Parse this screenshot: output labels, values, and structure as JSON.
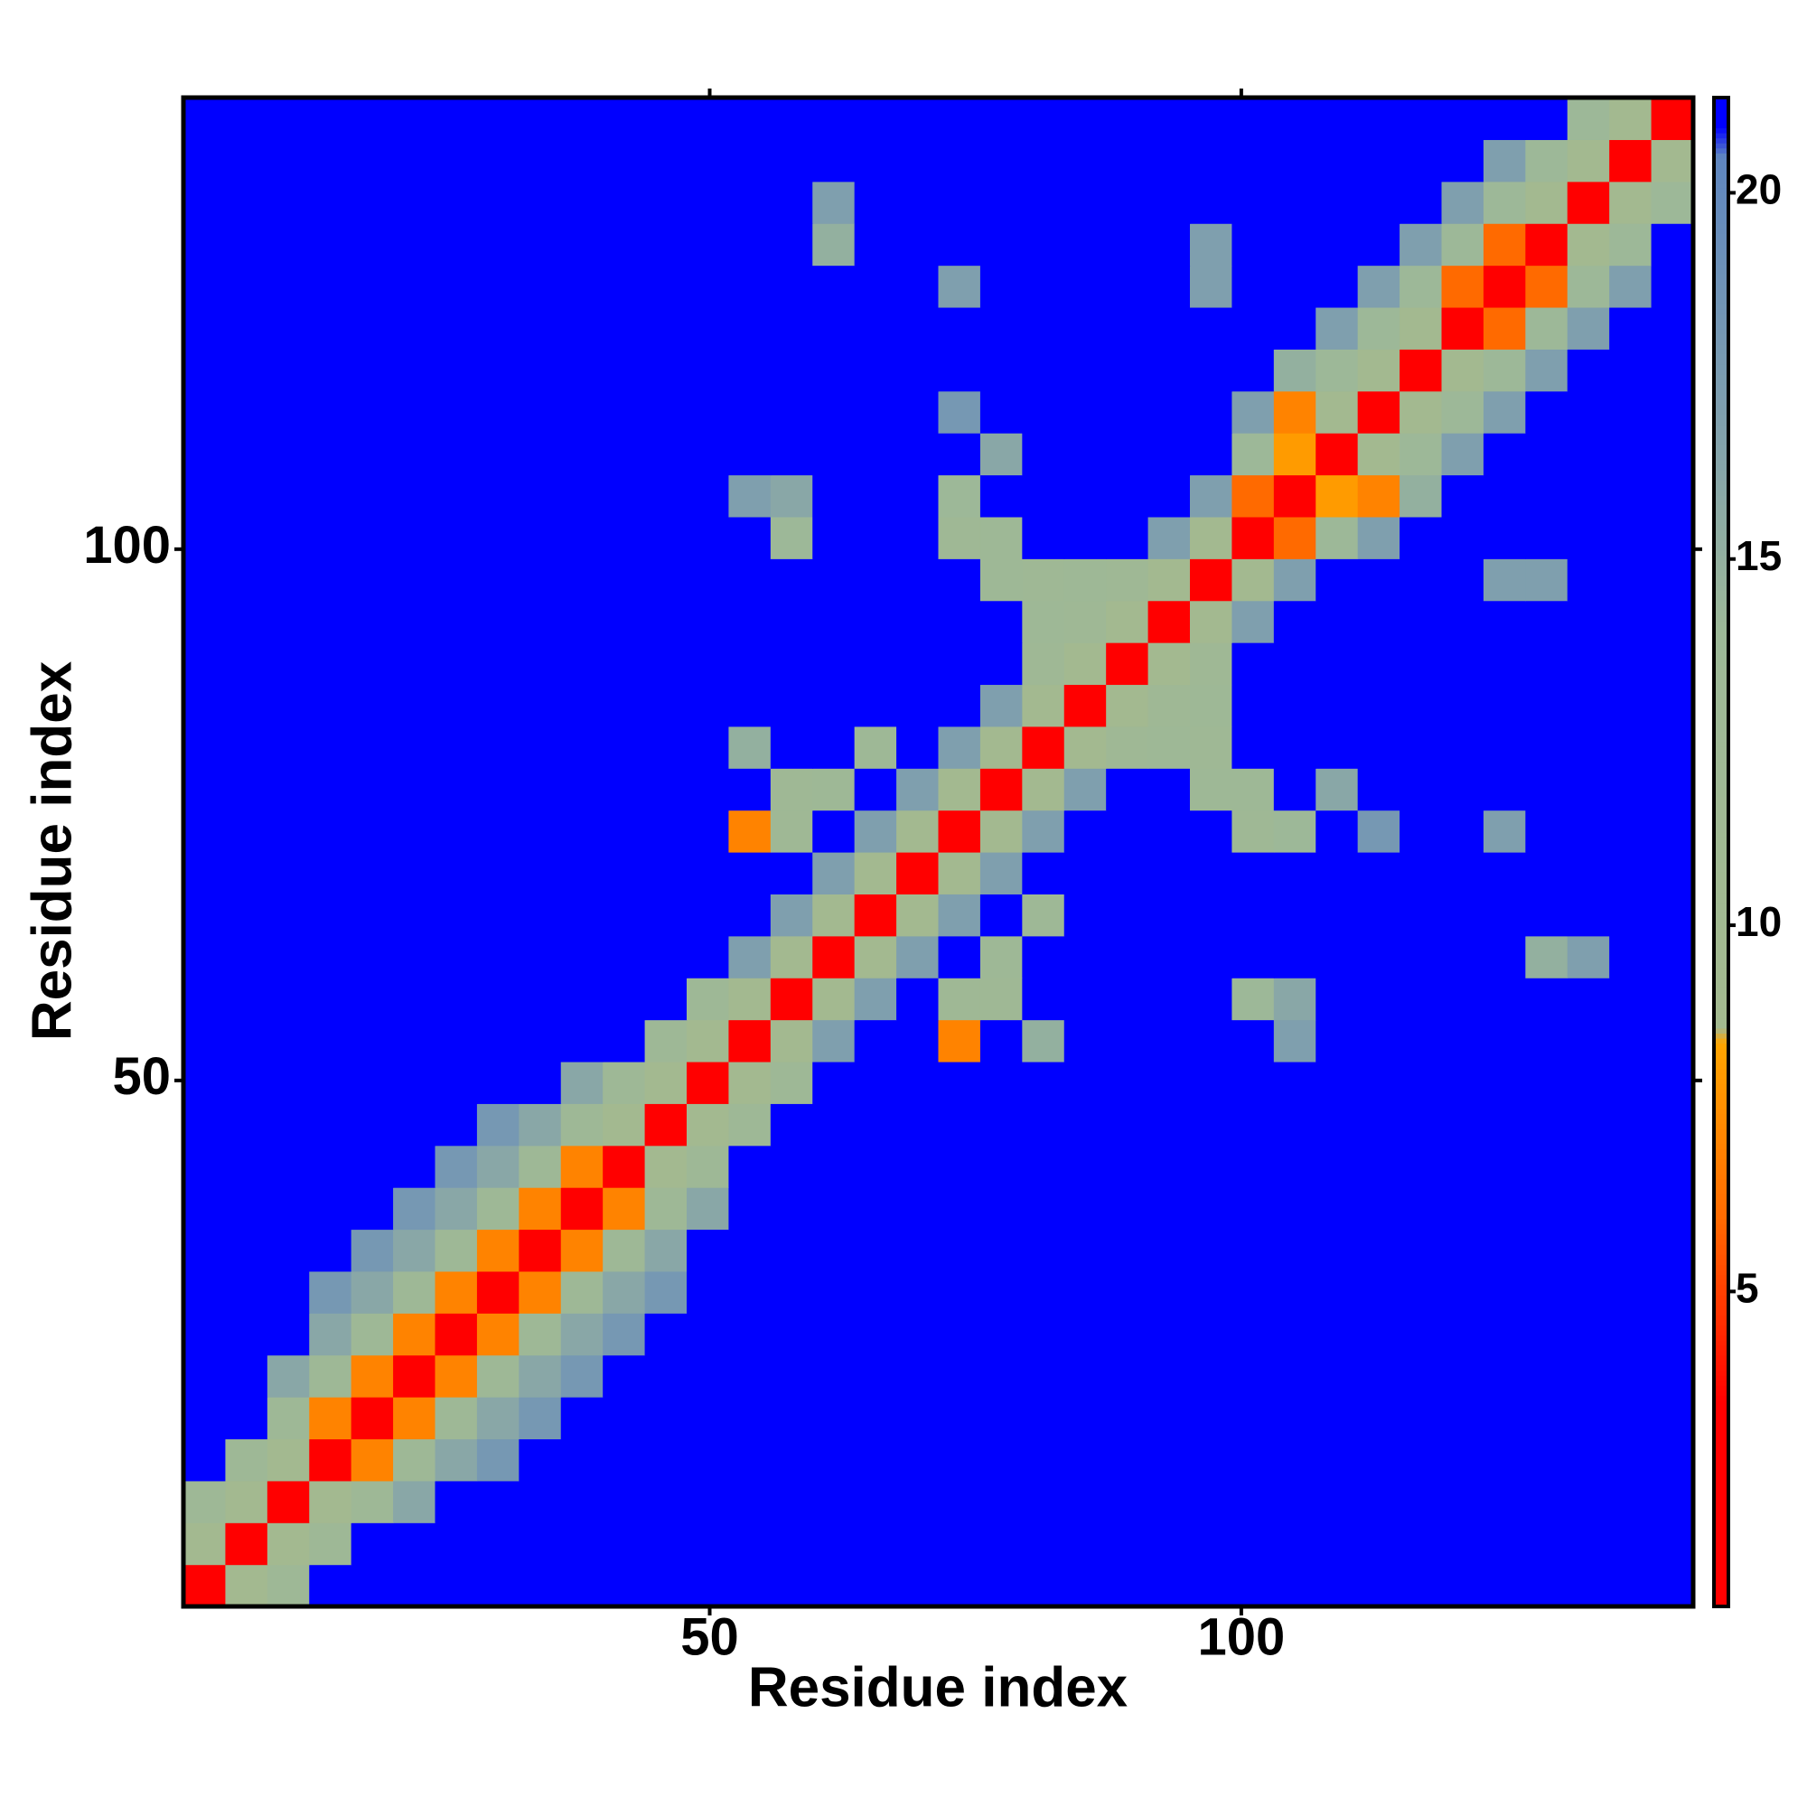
{
  "chart_data": {
    "type": "heatmap",
    "x_label": "Residue index",
    "y_label": "Residue index",
    "xlim": [
      0.5,
      142.5
    ],
    "ylim": [
      0.5,
      142.5
    ],
    "xticks": [
      50,
      100
    ],
    "yticks": [
      50,
      100
    ],
    "clim": [
      0.7,
      21.3
    ],
    "cticks": [
      5,
      10,
      15,
      20
    ],
    "colorscale": [
      [
        0.7,
        "#ff0000"
      ],
      [
        3.5,
        "#ff0000"
      ],
      [
        6,
        "#ff6a00"
      ],
      [
        8.4,
        "#ffa500"
      ],
      [
        8.6,
        "#a3b98f"
      ],
      [
        14,
        "#9db898"
      ],
      [
        17,
        "#7f9fae"
      ],
      [
        20.5,
        "#5f86bf"
      ],
      [
        20.9,
        "#0000ff"
      ],
      [
        21.3,
        "#0000ff"
      ]
    ],
    "z": [
      [
        3,
        9,
        13,
        21,
        21,
        21,
        21,
        21,
        21,
        21,
        21,
        21,
        21,
        21,
        21,
        21,
        21,
        21,
        21,
        21,
        21,
        21,
        21,
        21,
        21,
        21,
        21,
        21,
        21,
        21,
        21,
        21,
        21,
        21,
        21,
        21
      ],
      [
        9,
        3,
        9,
        13,
        21,
        21,
        21,
        21,
        21,
        21,
        21,
        21,
        21,
        21,
        21,
        21,
        21,
        21,
        21,
        21,
        21,
        21,
        21,
        21,
        21,
        21,
        21,
        21,
        21,
        21,
        21,
        21,
        21,
        21,
        21,
        21
      ],
      [
        13,
        9,
        3,
        9,
        13,
        16,
        21,
        21,
        21,
        21,
        21,
        21,
        21,
        21,
        21,
        21,
        21,
        21,
        21,
        21,
        21,
        21,
        21,
        21,
        21,
        21,
        21,
        21,
        21,
        21,
        21,
        21,
        21,
        21,
        21,
        21
      ],
      [
        21,
        13,
        9,
        3,
        7,
        13,
        16,
        18,
        21,
        21,
        21,
        21,
        21,
        21,
        21,
        21,
        21,
        21,
        21,
        21,
        21,
        21,
        21,
        21,
        21,
        21,
        21,
        21,
        21,
        21,
        21,
        21,
        21,
        21,
        21,
        21
      ],
      [
        21,
        21,
        13,
        7,
        3,
        7,
        13,
        16,
        18,
        21,
        21,
        21,
        21,
        21,
        21,
        21,
        21,
        21,
        21,
        21,
        21,
        21,
        21,
        21,
        21,
        21,
        21,
        21,
        21,
        21,
        21,
        21,
        21,
        21,
        21,
        21
      ],
      [
        21,
        21,
        16,
        13,
        7,
        3,
        7,
        13,
        16,
        18,
        21,
        21,
        21,
        21,
        21,
        21,
        21,
        21,
        21,
        21,
        21,
        21,
        21,
        21,
        21,
        21,
        21,
        21,
        21,
        21,
        21,
        21,
        21,
        21,
        21,
        21
      ],
      [
        21,
        21,
        21,
        16,
        13,
        7,
        3,
        7,
        13,
        16,
        18,
        21,
        21,
        21,
        21,
        21,
        21,
        21,
        21,
        21,
        21,
        21,
        21,
        21,
        21,
        21,
        21,
        21,
        21,
        21,
        21,
        21,
        21,
        21,
        21,
        21
      ],
      [
        21,
        21,
        21,
        18,
        16,
        13,
        7,
        3,
        7,
        13,
        16,
        18,
        21,
        21,
        21,
        21,
        21,
        21,
        21,
        21,
        21,
        21,
        21,
        21,
        21,
        21,
        21,
        21,
        21,
        21,
        21,
        21,
        21,
        21,
        21,
        21
      ],
      [
        21,
        21,
        21,
        21,
        18,
        16,
        13,
        7,
        3,
        7,
        13,
        16,
        21,
        21,
        21,
        21,
        21,
        21,
        21,
        21,
        21,
        21,
        21,
        21,
        21,
        21,
        21,
        21,
        21,
        21,
        21,
        21,
        21,
        21,
        21,
        21
      ],
      [
        21,
        21,
        21,
        21,
        21,
        18,
        16,
        13,
        7,
        3,
        7,
        13,
        16,
        21,
        21,
        21,
        21,
        21,
        21,
        21,
        21,
        21,
        21,
        21,
        21,
        21,
        21,
        21,
        21,
        21,
        21,
        21,
        21,
        21,
        21,
        21
      ],
      [
        21,
        21,
        21,
        21,
        21,
        21,
        18,
        16,
        13,
        7,
        3,
        9,
        13,
        21,
        21,
        21,
        21,
        21,
        21,
        21,
        21,
        21,
        21,
        21,
        21,
        21,
        21,
        21,
        21,
        21,
        21,
        21,
        21,
        21,
        21,
        21
      ],
      [
        21,
        21,
        21,
        21,
        21,
        21,
        21,
        18,
        16,
        13,
        9,
        3,
        9,
        13,
        21,
        21,
        21,
        21,
        21,
        21,
        21,
        21,
        21,
        21,
        21,
        21,
        21,
        21,
        21,
        21,
        21,
        21,
        21,
        21,
        21,
        21
      ],
      [
        21,
        21,
        21,
        21,
        21,
        21,
        21,
        21,
        21,
        16,
        13,
        9,
        3,
        9,
        13,
        21,
        21,
        21,
        21,
        21,
        21,
        21,
        21,
        21,
        21,
        21,
        21,
        21,
        21,
        21,
        21,
        21,
        21,
        21,
        21,
        21
      ],
      [
        21,
        21,
        21,
        21,
        21,
        21,
        21,
        21,
        21,
        21,
        21,
        13,
        9,
        3,
        9,
        17,
        21,
        21,
        7,
        21,
        15,
        21,
        21,
        21,
        21,
        21,
        17,
        21,
        21,
        21,
        21,
        21,
        21,
        21,
        21,
        21
      ],
      [
        21,
        21,
        21,
        21,
        21,
        21,
        21,
        21,
        21,
        21,
        21,
        21,
        13,
        9,
        3,
        9,
        17,
        21,
        12,
        12,
        21,
        21,
        21,
        21,
        21,
        14,
        16,
        21,
        21,
        21,
        21,
        21,
        21,
        21,
        21,
        21
      ],
      [
        21,
        21,
        21,
        21,
        21,
        21,
        21,
        21,
        21,
        21,
        21,
        21,
        21,
        17,
        9,
        3,
        9,
        17,
        21,
        13,
        21,
        21,
        21,
        21,
        21,
        21,
        21,
        21,
        21,
        21,
        21,
        21,
        15,
        17,
        21,
        21
      ],
      [
        21,
        21,
        21,
        21,
        21,
        21,
        21,
        21,
        21,
        21,
        21,
        21,
        21,
        21,
        17,
        9,
        3,
        9,
        17,
        21,
        13,
        21,
        21,
        21,
        21,
        21,
        21,
        21,
        21,
        21,
        21,
        21,
        21,
        21,
        21,
        21
      ],
      [
        21,
        21,
        21,
        21,
        21,
        21,
        21,
        21,
        21,
        21,
        21,
        21,
        21,
        21,
        21,
        17,
        9,
        3,
        9,
        17,
        21,
        21,
        21,
        21,
        21,
        21,
        21,
        21,
        21,
        21,
        21,
        21,
        21,
        21,
        21,
        21
      ],
      [
        21,
        21,
        21,
        21,
        21,
        21,
        21,
        21,
        21,
        21,
        21,
        21,
        21,
        7,
        12,
        21,
        17,
        9,
        3,
        9,
        17,
        21,
        21,
        21,
        21,
        12,
        14,
        21,
        18,
        21,
        21,
        17,
        21,
        21,
        21,
        21
      ],
      [
        21,
        21,
        21,
        21,
        21,
        21,
        21,
        21,
        21,
        21,
        21,
        21,
        21,
        21,
        12,
        13,
        21,
        17,
        9,
        3,
        9,
        17,
        21,
        21,
        13,
        13,
        21,
        16,
        21,
        21,
        21,
        21,
        21,
        21,
        21,
        21
      ],
      [
        21,
        21,
        21,
        21,
        21,
        21,
        21,
        21,
        21,
        21,
        21,
        21,
        21,
        15,
        21,
        21,
        13,
        21,
        17,
        9,
        3,
        9,
        12,
        13,
        12,
        21,
        21,
        21,
        21,
        21,
        21,
        21,
        21,
        21,
        21,
        21
      ],
      [
        21,
        21,
        21,
        21,
        21,
        21,
        21,
        21,
        21,
        21,
        21,
        21,
        21,
        21,
        21,
        21,
        21,
        21,
        21,
        17,
        9,
        3,
        9,
        12,
        13,
        21,
        21,
        21,
        21,
        21,
        21,
        21,
        21,
        21,
        21,
        21
      ],
      [
        21,
        21,
        21,
        21,
        21,
        21,
        21,
        21,
        21,
        21,
        21,
        21,
        21,
        21,
        21,
        21,
        21,
        21,
        21,
        21,
        12,
        9,
        3,
        9,
        12,
        21,
        21,
        21,
        21,
        21,
        21,
        21,
        21,
        21,
        21,
        21
      ],
      [
        21,
        21,
        21,
        21,
        21,
        21,
        21,
        21,
        21,
        21,
        21,
        21,
        21,
        21,
        21,
        21,
        21,
        21,
        21,
        21,
        13,
        12,
        9,
        3,
        9,
        17,
        21,
        21,
        21,
        21,
        21,
        21,
        21,
        21,
        21,
        21
      ],
      [
        21,
        21,
        21,
        21,
        21,
        21,
        21,
        21,
        21,
        21,
        21,
        21,
        21,
        21,
        21,
        21,
        21,
        21,
        21,
        13,
        12,
        13,
        12,
        9,
        3,
        9,
        17,
        21,
        21,
        21,
        21,
        17,
        17,
        21,
        21,
        21
      ],
      [
        21,
        21,
        21,
        21,
        21,
        21,
        21,
        21,
        21,
        21,
        21,
        21,
        21,
        21,
        14,
        21,
        21,
        21,
        12,
        13,
        21,
        21,
        21,
        17,
        9,
        3,
        6,
        14,
        17,
        21,
        21,
        21,
        21,
        21,
        21,
        21
      ],
      [
        21,
        21,
        21,
        21,
        21,
        21,
        21,
        21,
        21,
        21,
        21,
        21,
        21,
        17,
        16,
        21,
        21,
        21,
        14,
        21,
        21,
        21,
        21,
        21,
        17,
        6,
        3,
        8,
        7,
        15,
        21,
        21,
        21,
        21,
        21,
        21
      ],
      [
        21,
        21,
        21,
        21,
        21,
        21,
        21,
        21,
        21,
        21,
        21,
        21,
        21,
        21,
        21,
        21,
        21,
        21,
        21,
        16,
        21,
        21,
        21,
        21,
        21,
        14,
        8,
        3,
        9,
        14,
        17,
        21,
        21,
        21,
        21,
        21
      ],
      [
        21,
        21,
        21,
        21,
        21,
        21,
        21,
        21,
        21,
        21,
        21,
        21,
        21,
        21,
        21,
        21,
        21,
        21,
        18,
        21,
        21,
        21,
        21,
        21,
        21,
        17,
        7,
        9,
        3,
        9,
        14,
        17,
        21,
        21,
        21,
        21
      ],
      [
        21,
        21,
        21,
        21,
        21,
        21,
        21,
        21,
        21,
        21,
        21,
        21,
        21,
        21,
        21,
        21,
        21,
        21,
        21,
        21,
        21,
        21,
        21,
        21,
        21,
        21,
        15,
        14,
        9,
        3,
        9,
        14,
        17,
        21,
        21,
        21
      ],
      [
        21,
        21,
        21,
        21,
        21,
        21,
        21,
        21,
        21,
        21,
        21,
        21,
        21,
        21,
        21,
        21,
        21,
        21,
        21,
        21,
        21,
        21,
        21,
        21,
        21,
        21,
        21,
        17,
        14,
        9,
        3,
        6,
        14,
        17,
        21,
        21
      ],
      [
        21,
        21,
        21,
        21,
        21,
        21,
        21,
        21,
        21,
        21,
        21,
        21,
        21,
        21,
        21,
        21,
        21,
        21,
        17,
        21,
        21,
        21,
        21,
        21,
        17,
        21,
        21,
        21,
        17,
        14,
        6,
        3,
        6,
        14,
        17,
        21
      ],
      [
        21,
        21,
        21,
        21,
        21,
        21,
        21,
        21,
        21,
        21,
        21,
        21,
        21,
        21,
        21,
        15,
        21,
        21,
        21,
        21,
        21,
        21,
        21,
        21,
        17,
        21,
        21,
        21,
        21,
        17,
        14,
        6,
        3,
        9,
        14,
        21
      ],
      [
        21,
        21,
        21,
        21,
        21,
        21,
        21,
        21,
        21,
        21,
        21,
        21,
        21,
        21,
        21,
        17,
        21,
        21,
        21,
        21,
        21,
        21,
        21,
        21,
        21,
        21,
        21,
        21,
        21,
        21,
        17,
        14,
        9,
        3,
        9,
        14
      ],
      [
        21,
        21,
        21,
        21,
        21,
        21,
        21,
        21,
        21,
        21,
        21,
        21,
        21,
        21,
        21,
        21,
        21,
        21,
        21,
        21,
        21,
        21,
        21,
        21,
        21,
        21,
        21,
        21,
        21,
        21,
        21,
        17,
        14,
        9,
        3,
        9
      ],
      [
        21,
        21,
        21,
        21,
        21,
        21,
        21,
        21,
        21,
        21,
        21,
        21,
        21,
        21,
        21,
        21,
        21,
        21,
        21,
        21,
        21,
        21,
        21,
        21,
        21,
        21,
        21,
        21,
        21,
        21,
        21,
        21,
        21,
        14,
        9,
        3
      ]
    ]
  }
}
